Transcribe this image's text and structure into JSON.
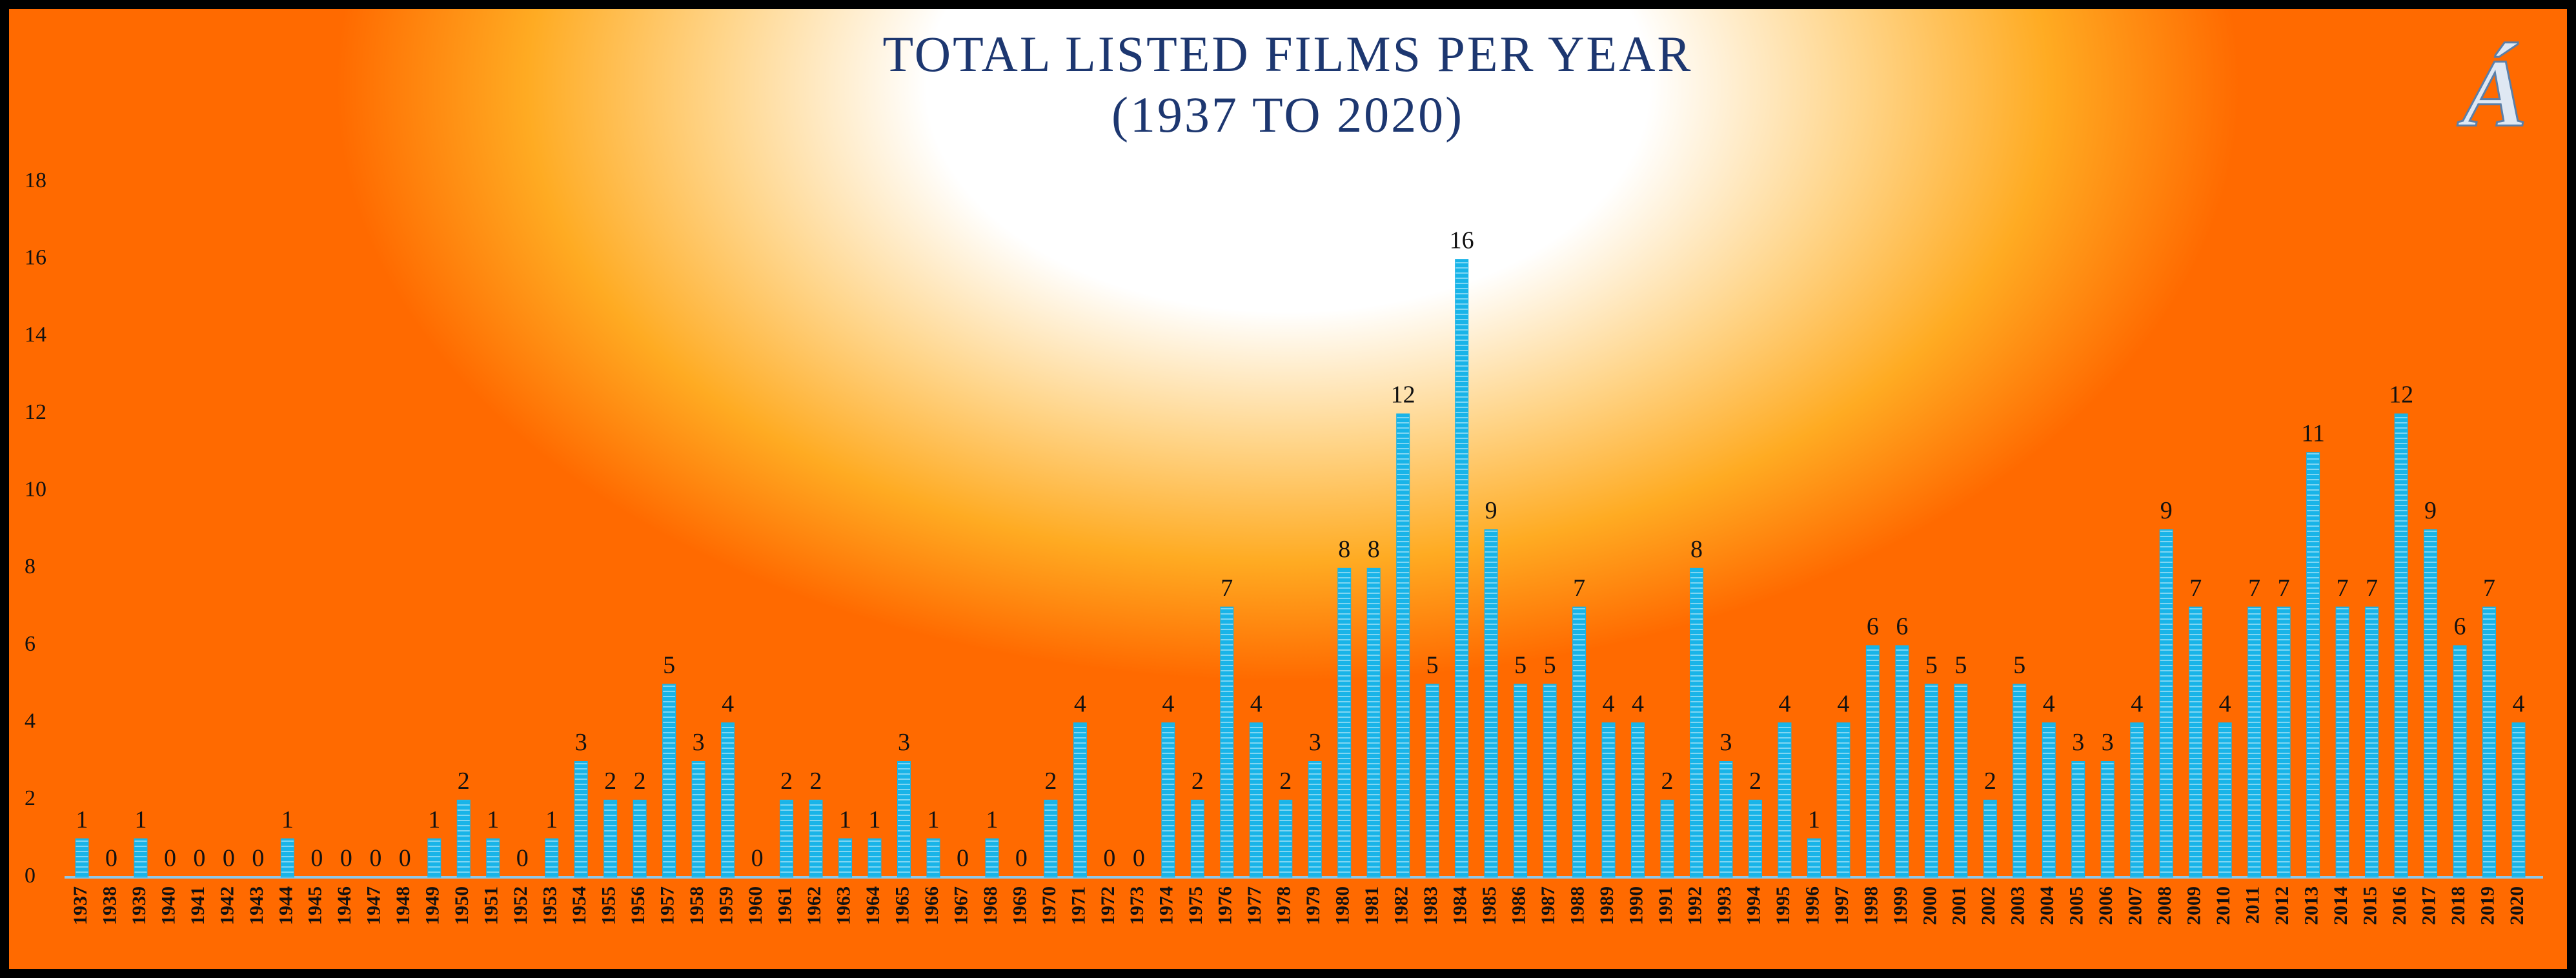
{
  "chart_data": {
    "type": "bar",
    "title": "TOTAL LISTED FILMS PER YEAR",
    "subtitle": "(1937 TO 2020)",
    "logo": "Á",
    "categories": [
      "1937",
      "1938",
      "1939",
      "1940",
      "1941",
      "1942",
      "1943",
      "1944",
      "1945",
      "1946",
      "1947",
      "1948",
      "1949",
      "1950",
      "1951",
      "1952",
      "1953",
      "1954",
      "1955",
      "1956",
      "1957",
      "1958",
      "1959",
      "1960",
      "1961",
      "1962",
      "1963",
      "1964",
      "1965",
      "1966",
      "1967",
      "1968",
      "1969",
      "1970",
      "1971",
      "1972",
      "1973",
      "1974",
      "1975",
      "1976",
      "1977",
      "1978",
      "1979",
      "1980",
      "1981",
      "1982",
      "1983",
      "1984",
      "1985",
      "1986",
      "1987",
      "1988",
      "1989",
      "1990",
      "1991",
      "1992",
      "1993",
      "1994",
      "1995",
      "1996",
      "1997",
      "1998",
      "1999",
      "2000",
      "2001",
      "2002",
      "2003",
      "2004",
      "2005",
      "2006",
      "2007",
      "2008",
      "2009",
      "2010",
      "2011",
      "2012",
      "2013",
      "2014",
      "2015",
      "2016",
      "2017",
      "2018",
      "2019",
      "2020"
    ],
    "values": [
      1,
      0,
      1,
      0,
      0,
      0,
      0,
      1,
      0,
      0,
      0,
      0,
      1,
      2,
      1,
      0,
      1,
      3,
      2,
      2,
      5,
      3,
      4,
      0,
      2,
      2,
      1,
      1,
      3,
      1,
      0,
      1,
      0,
      2,
      4,
      0,
      0,
      4,
      2,
      7,
      4,
      2,
      3,
      8,
      8,
      12,
      5,
      16,
      9,
      5,
      5,
      7,
      4,
      4,
      2,
      8,
      3,
      2,
      4,
      1,
      4,
      6,
      6,
      5,
      5,
      2,
      5,
      4,
      3,
      3,
      4,
      9,
      7,
      4,
      7,
      7,
      11,
      7,
      7,
      12,
      9,
      6,
      7,
      4
    ],
    "color": "#19b4e8",
    "ylim": [
      0,
      18
    ],
    "yticks": [
      0,
      2,
      4,
      6,
      8,
      10,
      12,
      14,
      16,
      18
    ],
    "grid": false
  }
}
